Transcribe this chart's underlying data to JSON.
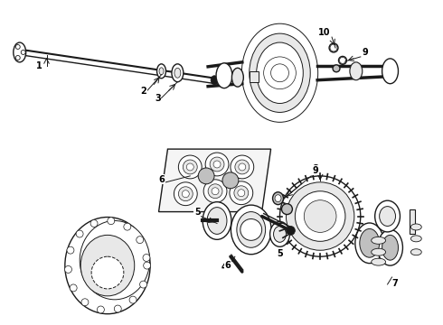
{
  "background_color": "#ffffff",
  "figsize": [
    4.9,
    3.6
  ],
  "dpi": 100,
  "black": "#1a1a1a",
  "gray_light": "#e8e8e8",
  "gray_med": "#c0c0c0"
}
